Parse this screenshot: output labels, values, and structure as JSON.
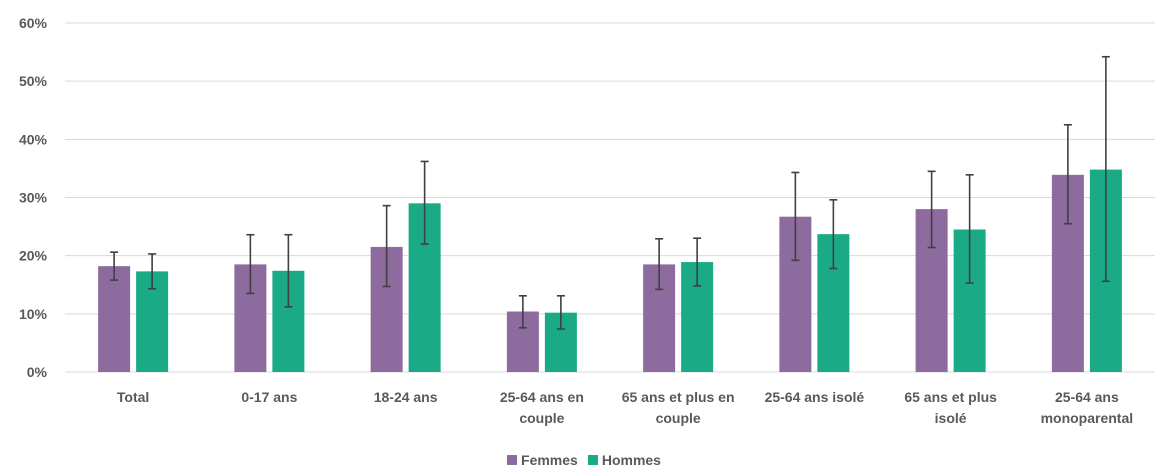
{
  "chart_data": {
    "type": "bar",
    "title": "",
    "xlabel": "",
    "ylabel": "",
    "ylim": [
      0,
      0.6
    ],
    "yticks": [
      0,
      0.1,
      0.2,
      0.3,
      0.4,
      0.5,
      0.6
    ],
    "ytick_labels": [
      "0%",
      "10%",
      "20%",
      "30%",
      "40%",
      "50%",
      "60%"
    ],
    "grid": true,
    "legend_position": "bottom",
    "categories": [
      [
        "Total"
      ],
      [
        "0-17 ans"
      ],
      [
        "18-24 ans"
      ],
      [
        "25-64 ans en",
        "couple"
      ],
      [
        "65 ans et plus en",
        "couple"
      ],
      [
        "25-64 ans isolé"
      ],
      [
        "65 ans et plus",
        "isolé"
      ],
      [
        "25-64 ans",
        "monoparental"
      ]
    ],
    "series": [
      {
        "name": "Femmes",
        "color": "#8E6B9E",
        "values": [
          0.182,
          0.185,
          0.215,
          0.104,
          0.185,
          0.267,
          0.28,
          0.339
        ],
        "error_low": [
          0.158,
          0.135,
          0.147,
          0.076,
          0.142,
          0.192,
          0.214,
          0.255
        ],
        "error_high": [
          0.206,
          0.236,
          0.286,
          0.131,
          0.229,
          0.343,
          0.345,
          0.425
        ]
      },
      {
        "name": "Hommes",
        "color": "#1AAB86",
        "values": [
          0.173,
          0.174,
          0.29,
          0.102,
          0.189,
          0.237,
          0.245,
          0.348
        ],
        "error_low": [
          0.143,
          0.112,
          0.22,
          0.074,
          0.148,
          0.178,
          0.153,
          0.156
        ],
        "error_high": [
          0.203,
          0.236,
          0.362,
          0.131,
          0.23,
          0.296,
          0.339,
          0.542
        ]
      }
    ]
  }
}
